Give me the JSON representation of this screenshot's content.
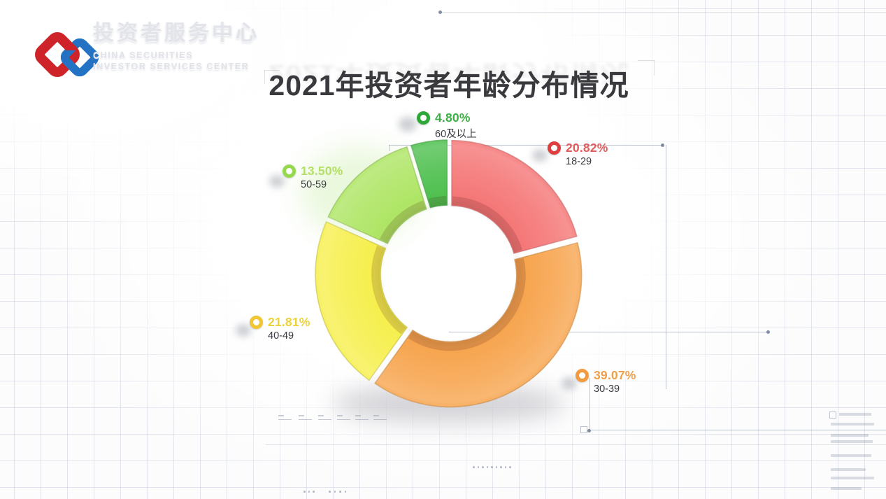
{
  "brand": {
    "name_cn": "投资者服务中心",
    "name_en_line1": "CHINA SECURITIES",
    "name_en_line2": "INVESTOR SERVICES CENTER",
    "logo_colors": {
      "red": "#ce2328",
      "blue": "#2472c3"
    }
  },
  "title": "2021年投资者年龄分布情况",
  "chart_data": {
    "type": "pie",
    "subtype": "donut",
    "title": "2021年投资者年龄分布情况",
    "unit": "percent",
    "direction": "clockwise",
    "start_angle_deg": 0,
    "legend_position": "callouts-around-chart",
    "series": [
      {
        "label": "18-29",
        "value": 20.82,
        "display": "20.82%",
        "color": "#f57777",
        "icon_color": "#dd3e3e",
        "text_color": "#e25c5c"
      },
      {
        "label": "30-39",
        "value": 39.07,
        "display": "39.07%",
        "color": "#f7a54f",
        "icon_color": "#f29b3e",
        "text_color": "#f0a04a"
      },
      {
        "label": "40-49",
        "value": 21.81,
        "display": "21.81%",
        "color": "#f6ef4e",
        "icon_color": "#f0c634",
        "text_color": "#ecd23a"
      },
      {
        "label": "50-59",
        "value": 13.5,
        "display": "13.50%",
        "color": "#aee564",
        "icon_color": "#96d94e",
        "text_color": "#b3df66"
      },
      {
        "label": "60及以上",
        "value": 4.8,
        "display": "4.80%",
        "color": "#4fc04f",
        "icon_color": "#2ea838",
        "text_color": "#3fae46"
      }
    ]
  }
}
